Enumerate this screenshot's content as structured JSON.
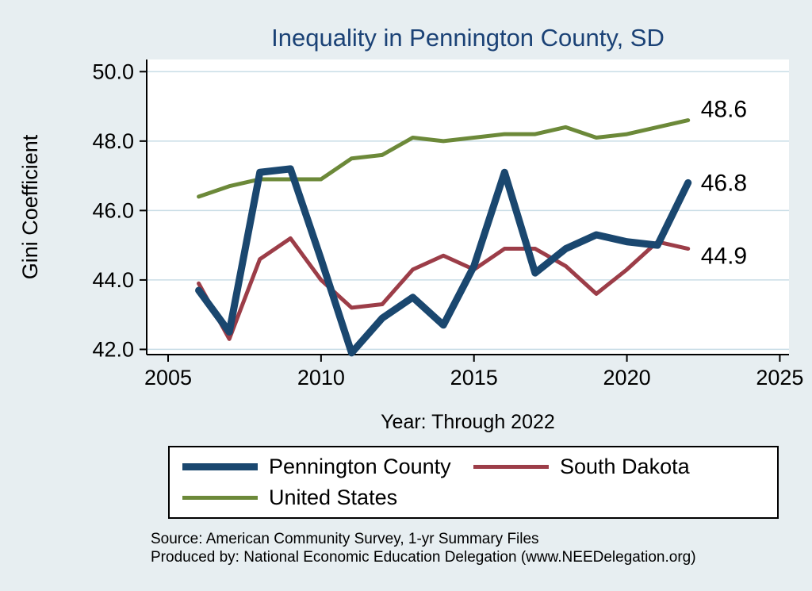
{
  "chart_data": {
    "type": "line",
    "title": "Inequality in Pennington County, SD",
    "xlabel": "Year: Through 2022",
    "ylabel": "Gini Coefficient",
    "x": [
      2006,
      2007,
      2008,
      2009,
      2010,
      2011,
      2012,
      2013,
      2014,
      2015,
      2016,
      2017,
      2018,
      2019,
      2020,
      2021,
      2022
    ],
    "series": [
      {
        "name": "Pennington County",
        "color": "#1a476f",
        "width": 9,
        "values": [
          43.7,
          42.5,
          47.1,
          47.2,
          44.6,
          41.9,
          42.9,
          43.5,
          42.7,
          44.4,
          47.1,
          44.2,
          44.9,
          45.3,
          45.1,
          45.0,
          46.8
        ],
        "end_label": "46.8",
        "label_dy": 0
      },
      {
        "name": "South Dakota",
        "color": "#9c3d48",
        "width": 5,
        "values": [
          43.9,
          42.3,
          44.6,
          45.2,
          44.0,
          43.2,
          43.3,
          44.3,
          44.7,
          44.3,
          44.9,
          44.9,
          44.4,
          43.6,
          44.3,
          45.1,
          44.9
        ],
        "end_label": "44.9",
        "label_dy": 9
      },
      {
        "name": "United States",
        "color": "#6c8939",
        "width": 5,
        "values": [
          46.4,
          46.7,
          46.9,
          46.9,
          46.9,
          47.5,
          47.6,
          48.1,
          48.0,
          48.1,
          48.2,
          48.2,
          48.4,
          48.1,
          48.2,
          48.4,
          48.6
        ],
        "end_label": "48.6",
        "label_dy": -14
      }
    ],
    "x_ticks": [
      2005,
      2010,
      2015,
      2020,
      2025
    ],
    "x_tick_labels": [
      "2005",
      "2010",
      "2015",
      "2020",
      "2025"
    ],
    "y_ticks": [
      42.0,
      44.0,
      46.0,
      48.0,
      50.0
    ],
    "y_tick_labels": [
      "42.0",
      "44.0",
      "46.0",
      "48.0",
      "50.0"
    ],
    "xlim": [
      2004.3,
      2025.3
    ],
    "ylim": [
      41.85,
      50.35
    ],
    "grid": "horizontal",
    "legend_position": "bottom"
  },
  "footer": {
    "source": "Source: American Community Survey, 1-yr Summary Files",
    "produced_by": "Produced by: National Economic Education Delegation (www.NEEDelegation.org)"
  },
  "colors": {
    "background": "#e7eef1",
    "plot_background": "#ffffff",
    "title": "#1b4276",
    "grid": "#c9dde6",
    "axis": "#000000",
    "text": "#000000"
  }
}
